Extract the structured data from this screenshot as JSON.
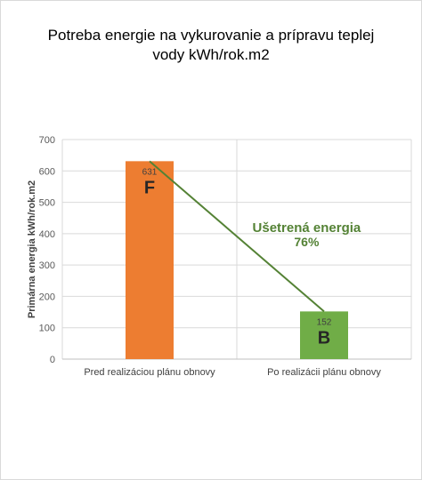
{
  "chart_data": {
    "type": "bar",
    "title_lines": [
      "Potreba energie na vykurovanie a prípravu teplej",
      "vody kWh/rok.m2"
    ],
    "xlabel": "",
    "ylabel": "Primárna energia kWh/rok.m2",
    "ylim": [
      0,
      700
    ],
    "yticks": [
      0,
      100,
      200,
      300,
      400,
      500,
      600,
      700
    ],
    "grid": true,
    "categories": [
      "Pred realizáciou plánu obnovy",
      "Po realizácii plánu obnovy"
    ],
    "values": [
      631,
      152
    ],
    "bar_colors": [
      "#ed7d31",
      "#70ad47"
    ],
    "data_labels": [
      "631",
      "152"
    ],
    "class_letters": [
      "F",
      "B"
    ],
    "annotation": {
      "text": "Ušetrená energia",
      "percent": "76%",
      "color": "#548235"
    },
    "line_color": "#548235"
  }
}
